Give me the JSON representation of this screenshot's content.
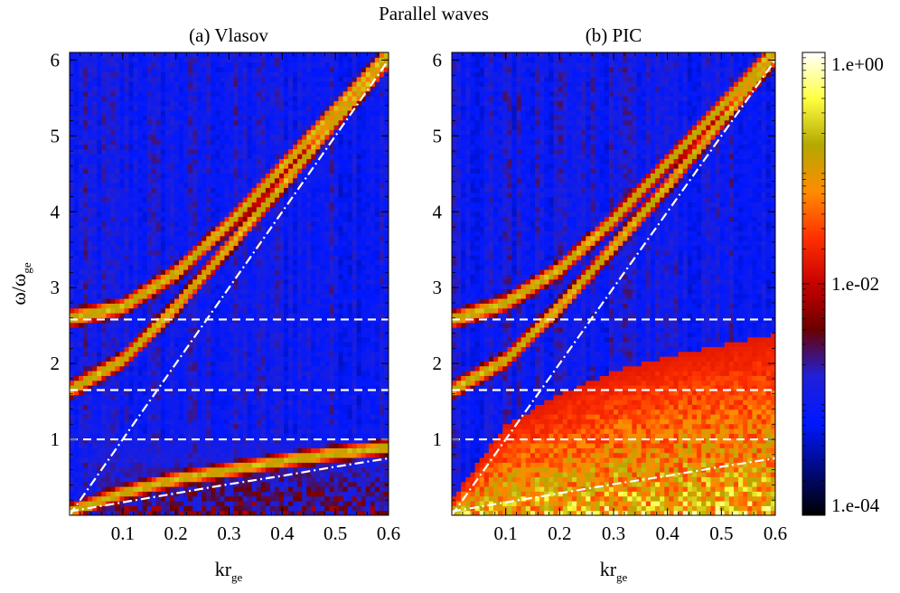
{
  "figure": {
    "title": "Parallel waves"
  },
  "chart_data": [
    {
      "type": "heatmap",
      "title": "(a) Vlasov",
      "xlabel": "kr",
      "xlabel_sub": "ge",
      "ylabel": "ω/ω",
      "ylabel_sub": "ge",
      "xlim": [
        0.0,
        0.6
      ],
      "ylim": [
        0.0,
        6.1
      ],
      "xticks": [
        0.1,
        0.2,
        0.3,
        0.4,
        0.5,
        0.6
      ],
      "xtick_labels": [
        "0.1",
        "0.2",
        "0.3",
        "0.4",
        "0.5",
        "0.6"
      ],
      "yticks": [
        1,
        2,
        3,
        4,
        5,
        6
      ],
      "ytick_labels": [
        "1",
        "2",
        "3",
        "4",
        "5",
        "6"
      ],
      "horizontal_dashed_lines": [
        1.0,
        1.65,
        2.58
      ],
      "dash_dot_lines": [
        {
          "x": [
            0.0,
            0.6
          ],
          "y": [
            0.0,
            6.0
          ]
        },
        {
          "x": [
            0.0,
            0.1,
            0.2,
            0.3,
            0.4,
            0.5,
            0.6
          ],
          "y": [
            0.05,
            0.17,
            0.29,
            0.41,
            0.52,
            0.64,
            0.75
          ]
        }
      ],
      "ridges": [
        {
          "x": [
            0.0,
            0.1,
            0.2,
            0.3,
            0.4,
            0.5,
            0.6
          ],
          "y": [
            2.6,
            2.75,
            3.2,
            3.85,
            4.6,
            5.35,
            6.1
          ]
        },
        {
          "x": [
            0.0,
            0.1,
            0.2,
            0.3,
            0.4,
            0.5,
            0.6
          ],
          "y": [
            1.65,
            2.05,
            2.75,
            3.55,
            4.35,
            5.2,
            6.0
          ]
        },
        {
          "x": [
            0.0,
            0.1,
            0.2,
            0.3,
            0.4,
            0.5,
            0.6
          ],
          "y": [
            0.05,
            0.3,
            0.48,
            0.6,
            0.72,
            0.82,
            0.9
          ]
        }
      ]
    },
    {
      "type": "heatmap",
      "title": "(b) PIC",
      "xlabel": "kr",
      "xlabel_sub": "ge",
      "xlim": [
        0.0,
        0.6
      ],
      "ylim": [
        0.0,
        6.1
      ],
      "xticks": [
        0.1,
        0.2,
        0.3,
        0.4,
        0.5,
        0.6
      ],
      "xtick_labels": [
        "0.1",
        "0.2",
        "0.3",
        "0.4",
        "0.5",
        "0.6"
      ],
      "yticks": [
        1,
        2,
        3,
        4,
        5,
        6
      ],
      "ytick_labels": [
        "1",
        "2",
        "3",
        "4",
        "5",
        "6"
      ],
      "horizontal_dashed_lines": [
        1.0,
        1.65,
        2.58
      ],
      "dash_dot_lines": [
        {
          "x": [
            0.0,
            0.6
          ],
          "y": [
            0.0,
            6.0
          ]
        },
        {
          "x": [
            0.0,
            0.1,
            0.2,
            0.3,
            0.4,
            0.5,
            0.6
          ],
          "y": [
            0.05,
            0.17,
            0.29,
            0.41,
            0.52,
            0.64,
            0.75
          ]
        }
      ],
      "ridges": [
        {
          "x": [
            0.0,
            0.1,
            0.2,
            0.3,
            0.4,
            0.5,
            0.6
          ],
          "y": [
            2.58,
            2.8,
            3.25,
            3.9,
            4.65,
            5.4,
            6.15
          ]
        },
        {
          "x": [
            0.0,
            0.1,
            0.2,
            0.3,
            0.4,
            0.5,
            0.6
          ],
          "y": [
            1.65,
            2.05,
            2.75,
            3.55,
            4.35,
            5.2,
            6.05
          ]
        }
      ],
      "noise_region_upper_bound": {
        "x": [
          0.0,
          0.1,
          0.2,
          0.3,
          0.4,
          0.5,
          0.6
        ],
        "y": [
          0.2,
          1.2,
          1.6,
          1.9,
          2.1,
          2.25,
          2.4
        ]
      }
    }
  ],
  "colorbar": {
    "scale": "log",
    "range": [
      0.0001,
      1.0
    ],
    "tick_values": [
      1.0,
      0.01,
      0.0001
    ],
    "tick_labels": [
      "1.e+00",
      "1.e-02",
      "1.e-04"
    ],
    "colors": [
      "#000000",
      "#000a80",
      "#0018ff",
      "#2020d8",
      "#6a0000",
      "#c80000",
      "#ff3000",
      "#ff8c00",
      "#b4a800",
      "#ffff40",
      "#ffffff"
    ]
  }
}
